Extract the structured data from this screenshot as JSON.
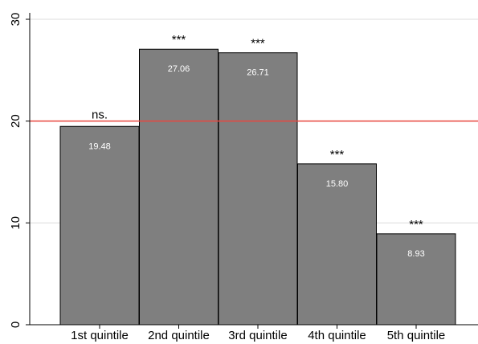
{
  "chart_data": {
    "type": "bar",
    "title": "",
    "xlabel": "",
    "ylabel": "",
    "categories": [
      "1st quintile",
      "2nd quintile",
      "3rd quintile",
      "4th quintile",
      "5th quintile"
    ],
    "values": [
      19.48,
      27.06,
      26.71,
      15.8,
      8.93
    ],
    "value_labels": [
      "19.48",
      "27.06",
      "26.71",
      "15.80",
      "8.93"
    ],
    "significance": [
      "ns.",
      "***",
      "***",
      "***",
      "***"
    ],
    "ylim": [
      0,
      30
    ],
    "yticks": [
      0,
      10,
      20,
      30
    ],
    "reference_line": 20,
    "grid": true,
    "colors": {
      "bar_fill": "#7f7f7f",
      "bar_stroke": "#000000",
      "reference_line": "#e8473f",
      "grid": "#dcdcdc",
      "axis": "#000000"
    }
  }
}
